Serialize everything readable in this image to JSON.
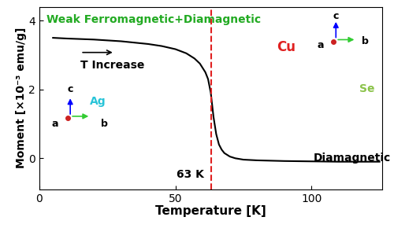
{
  "chart_data": {
    "type": "line",
    "x_label": "Temperature [K]",
    "y_label": "Moment [×10⁻³ emu/g]",
    "x": [
      5,
      10,
      20,
      30,
      40,
      45,
      50,
      54,
      57,
      59,
      61,
      62,
      63,
      64,
      65,
      66,
      67,
      68,
      70,
      72,
      75,
      80,
      90,
      100,
      110,
      120,
      125
    ],
    "values": [
      3.5,
      3.48,
      3.45,
      3.4,
      3.32,
      3.26,
      3.17,
      3.05,
      2.9,
      2.75,
      2.5,
      2.3,
      1.9,
      1.2,
      0.7,
      0.4,
      0.25,
      0.15,
      0.05,
      0.0,
      -0.04,
      -0.06,
      -0.08,
      -0.09,
      -0.1,
      -0.1,
      -0.1
    ],
    "color": "#000000",
    "xlim": [
      0,
      126
    ],
    "xticks": [
      0,
      50,
      100
    ],
    "ylim": [
      -0.9,
      4.4
    ],
    "yticks": [
      0,
      2,
      4
    ],
    "reference_line": {
      "x": 63,
      "color": "#e02020",
      "line_style": "dashed"
    },
    "annotations": [
      {
        "text": "Weak Ferromagnetic+Diamagnetic",
        "color": "#22aa22"
      },
      {
        "text": "T Increase",
        "color": "#000000"
      },
      {
        "text": "63 K",
        "color": "#000000"
      },
      {
        "text": "Diamagnetic",
        "color": "#000000"
      },
      {
        "text": "Cu",
        "color": "#e02020"
      },
      {
        "text": "Se",
        "color": "#8bc34a"
      },
      {
        "text": "Ag",
        "color": "#29c4d8"
      },
      {
        "text": "c",
        "color": "#000000"
      },
      {
        "text": "b",
        "color": "#000000"
      },
      {
        "text": "a",
        "color": "#000000"
      },
      {
        "text": "c",
        "color": "#000000"
      },
      {
        "text": "b",
        "color": "#000000"
      },
      {
        "text": "a",
        "color": "#000000"
      }
    ]
  }
}
